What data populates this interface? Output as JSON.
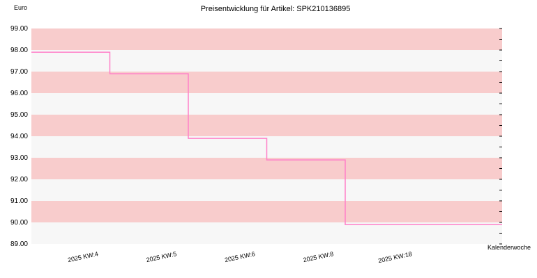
{
  "chart_data": {
    "type": "line",
    "step": true,
    "title": "Preisentwicklung für Artikel: SPK210136895",
    "ylabel": "Euro",
    "xlabel": "Kalenderwoche",
    "categories": [
      "2025 KW:4",
      "2025 KW:5",
      "2025 KW:6",
      "2025 KW:8",
      "2025 KW:18"
    ],
    "series": [
      {
        "values": [
          97.9,
          96.9,
          93.9,
          92.9,
          89.9
        ],
        "color": "#ff80c8"
      }
    ],
    "ylim": [
      89.0,
      99.0
    ],
    "yticks": [
      "89.00",
      "90.00",
      "91.00",
      "92.00",
      "93.00",
      "94.00",
      "95.00",
      "96.00",
      "97.00",
      "98.00",
      "99.00"
    ],
    "grid": true,
    "band_colors": [
      "#f7f7f7",
      "#f8cccc"
    ]
  }
}
